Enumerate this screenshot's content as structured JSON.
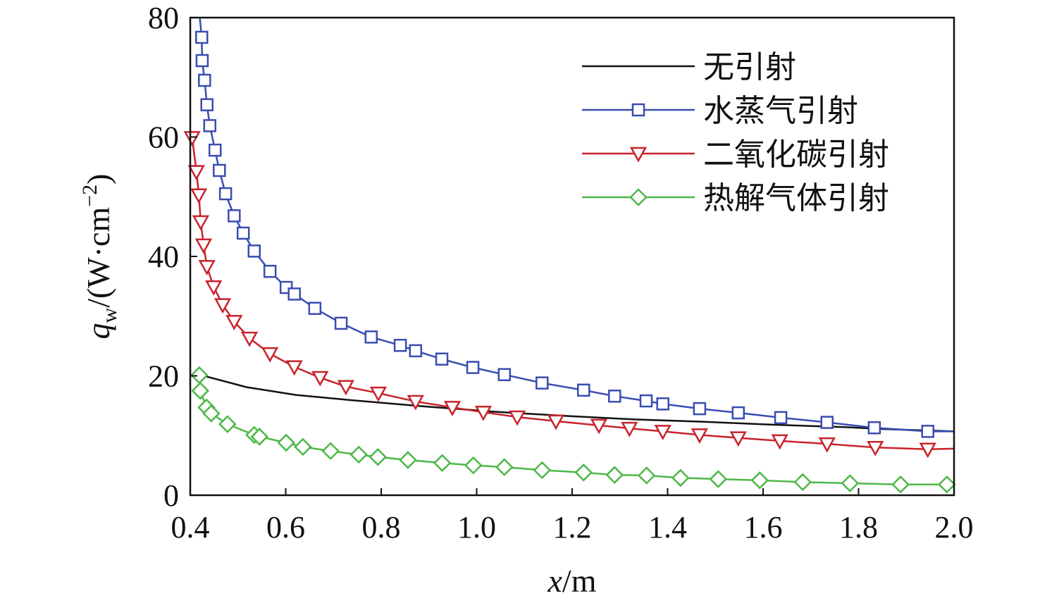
{
  "chart_data": {
    "type": "line",
    "title": "",
    "xlabel": "x/m",
    "ylabel": "q_w/(W·cm^-2)",
    "ylabel_parts": {
      "var": "q",
      "sub": "w",
      "unit": "/(W·cm",
      "sup": "−2",
      "close": ")"
    },
    "xlabel_parts": {
      "var": "x",
      "unit": "/m"
    },
    "xlim": [
      0.4,
      2.0
    ],
    "ylim": [
      0,
      80
    ],
    "xticks": [
      "0.4",
      "0.6",
      "0.8",
      "1.0",
      "1.2",
      "1.4",
      "1.6",
      "1.8",
      "2.0"
    ],
    "yticks": [
      "0",
      "20",
      "40",
      "60",
      "80"
    ],
    "grid": false,
    "legend_position": "top-right",
    "series": [
      {
        "name": "无引射",
        "color": "#111111",
        "marker": "none",
        "x": [
          0.419,
          0.518,
          0.621,
          0.74,
          0.887,
          1.035,
          1.182,
          1.33,
          1.477,
          1.625,
          1.773,
          1.846,
          2.0
        ],
        "y": [
          20.2,
          18.1,
          16.8,
          15.9,
          14.9,
          14.0,
          13.3,
          12.7,
          12.3,
          11.8,
          11.4,
          11.1,
          10.7
        ]
      },
      {
        "name": "水蒸气引射",
        "color": "#3a4db0",
        "marker": "square",
        "x": [
          0.424,
          0.425,
          0.43,
          0.435,
          0.441,
          0.452,
          0.461,
          0.474,
          0.492,
          0.511,
          0.534,
          0.567,
          0.601,
          0.618,
          0.661,
          0.716,
          0.779,
          0.84,
          0.872,
          0.927,
          0.992,
          1.058,
          1.137,
          1.224,
          1.289,
          1.355,
          1.39,
          1.467,
          1.548,
          1.637,
          1.734,
          1.833,
          1.945
        ],
        "y": [
          76.7,
          72.8,
          69.5,
          65.4,
          61.9,
          57.8,
          54.4,
          50.5,
          46.8,
          43.9,
          40.9,
          37.5,
          34.8,
          33.7,
          31.3,
          28.8,
          26.5,
          25.1,
          24.2,
          22.8,
          21.4,
          20.2,
          18.8,
          17.6,
          16.6,
          15.8,
          15.3,
          14.5,
          13.8,
          13.0,
          12.2,
          11.3,
          10.7
        ],
        "line_start": [
          0.42,
          80
        ],
        "line_end": [
          2.0,
          10.7
        ]
      },
      {
        "name": "二氧化碳引射",
        "color": "#c8232c",
        "marker": "triangle-down",
        "x": [
          0.404,
          0.413,
          0.418,
          0.422,
          0.428,
          0.435,
          0.449,
          0.468,
          0.492,
          0.524,
          0.567,
          0.618,
          0.672,
          0.726,
          0.794,
          0.872,
          0.949,
          1.014,
          1.085,
          1.166,
          1.256,
          1.32,
          1.39,
          1.467,
          1.548,
          1.635,
          1.734,
          1.835,
          1.945
        ],
        "y": [
          59.9,
          54.2,
          50.3,
          45.8,
          41.9,
          38.3,
          34.9,
          31.9,
          29.1,
          26.3,
          23.7,
          21.5,
          19.7,
          18.2,
          17.1,
          15.7,
          14.7,
          13.9,
          13.1,
          12.4,
          11.7,
          11.2,
          10.7,
          10.1,
          9.6,
          9.1,
          8.6,
          8.0,
          7.7
        ],
        "line_end": [
          2.0,
          7.8
        ]
      },
      {
        "name": "热解气体引射",
        "color": "#4cb848",
        "marker": "diamond",
        "x": [
          0.419,
          0.421,
          0.434,
          0.444,
          0.478,
          0.534,
          0.545,
          0.601,
          0.636,
          0.694,
          0.753,
          0.793,
          0.856,
          0.928,
          0.993,
          1.058,
          1.137,
          1.224,
          1.289,
          1.356,
          1.427,
          1.506,
          1.593,
          1.683,
          1.782,
          1.888,
          1.985
        ],
        "y": [
          20.1,
          17.5,
          14.7,
          13.7,
          11.9,
          10.1,
          9.8,
          8.8,
          8.1,
          7.4,
          6.8,
          6.4,
          5.9,
          5.4,
          5.0,
          4.7,
          4.2,
          3.8,
          3.4,
          3.3,
          2.9,
          2.7,
          2.5,
          2.2,
          2.0,
          1.8,
          1.8
        ]
      }
    ]
  }
}
